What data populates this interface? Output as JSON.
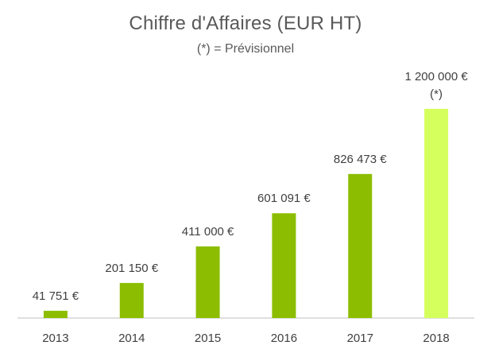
{
  "chart_data": {
    "type": "bar",
    "title": "Chiffre d'Affaires (EUR HT)",
    "subtitle": "(*) = Prévisionnel",
    "categories": [
      "2013",
      "2014",
      "2015",
      "2016",
      "2017",
      "2018"
    ],
    "values": [
      41751,
      201150,
      411000,
      601091,
      826473,
      1200000
    ],
    "data_labels": [
      "41 751 €",
      "201 150 €",
      "411 000 €",
      "601 091 €",
      "826 473 €",
      "1 200 000 €"
    ],
    "annotations": [
      "",
      "",
      "",
      "",
      "",
      "(*)"
    ],
    "forecast": [
      false,
      false,
      false,
      false,
      false,
      true
    ],
    "ylim": [
      0,
      1300000
    ],
    "grid": false,
    "legend": "none",
    "colors": {
      "bar": "#8cbd00",
      "forecast_bar": "#d4ff5c",
      "axis": "#bfbfbf"
    }
  }
}
